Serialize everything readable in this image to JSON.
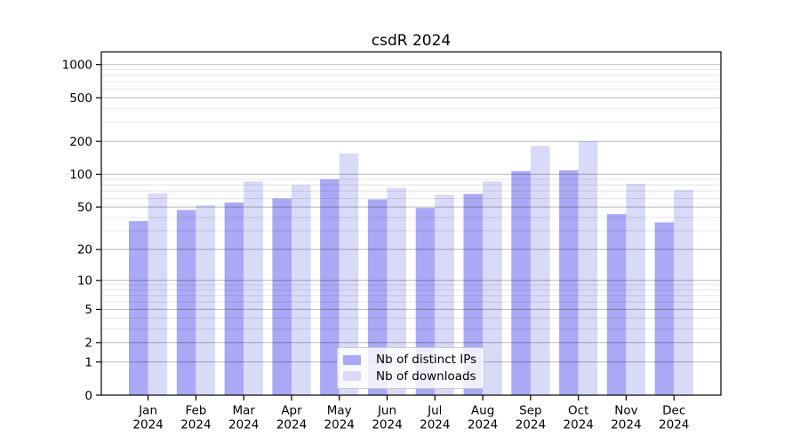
{
  "title": "csdR 2024",
  "legend": {
    "items": [
      {
        "key": "ips",
        "label": "Nb of distinct IPs",
        "color": "#a9a9f5"
      },
      {
        "key": "downloads",
        "label": "Nb of downloads",
        "color": "#d9d9f8"
      }
    ]
  },
  "axis": {
    "y_major_ticks": [
      0,
      1,
      2,
      5,
      10,
      20,
      50,
      100,
      200,
      500,
      1000
    ],
    "y_minor_gridlines": [
      3,
      4,
      6,
      7,
      8,
      9,
      30,
      40,
      60,
      70,
      80,
      90,
      300,
      400,
      600,
      700,
      800,
      900
    ],
    "year_label": "2024"
  },
  "chart_data": {
    "type": "bar",
    "title": "csdR 2024",
    "categories": [
      "Jan",
      "Feb",
      "Mar",
      "Apr",
      "May",
      "Jun",
      "Jul",
      "Aug",
      "Sep",
      "Oct",
      "Nov",
      "Dec"
    ],
    "category_year": "2024",
    "series": [
      {
        "name": "Nb of distinct IPs",
        "color": "#a9a9f5",
        "values": [
          37,
          47,
          55,
          60,
          90,
          59,
          49,
          66,
          107,
          109,
          43,
          36
        ]
      },
      {
        "name": "Nb of downloads",
        "color": "#d9d9f8",
        "values": [
          67,
          52,
          86,
          80,
          155,
          75,
          65,
          86,
          182,
          200,
          82,
          72
        ]
      }
    ],
    "yscale": "log1p",
    "ylim": [
      0,
      1070
    ],
    "y_tick_values": [
      0,
      1,
      2,
      5,
      10,
      20,
      50,
      100,
      200,
      500,
      1000
    ],
    "grid": true,
    "legend_position": "lower center"
  },
  "colors": {
    "bar_ips": "#a9a9f5",
    "bar_downloads": "#d9d9f8",
    "grid_major": "rgba(0,0,0,0.28)",
    "grid_minor": "rgba(0,0,0,0.10)",
    "spine": "#000000",
    "background": "#ffffff"
  }
}
